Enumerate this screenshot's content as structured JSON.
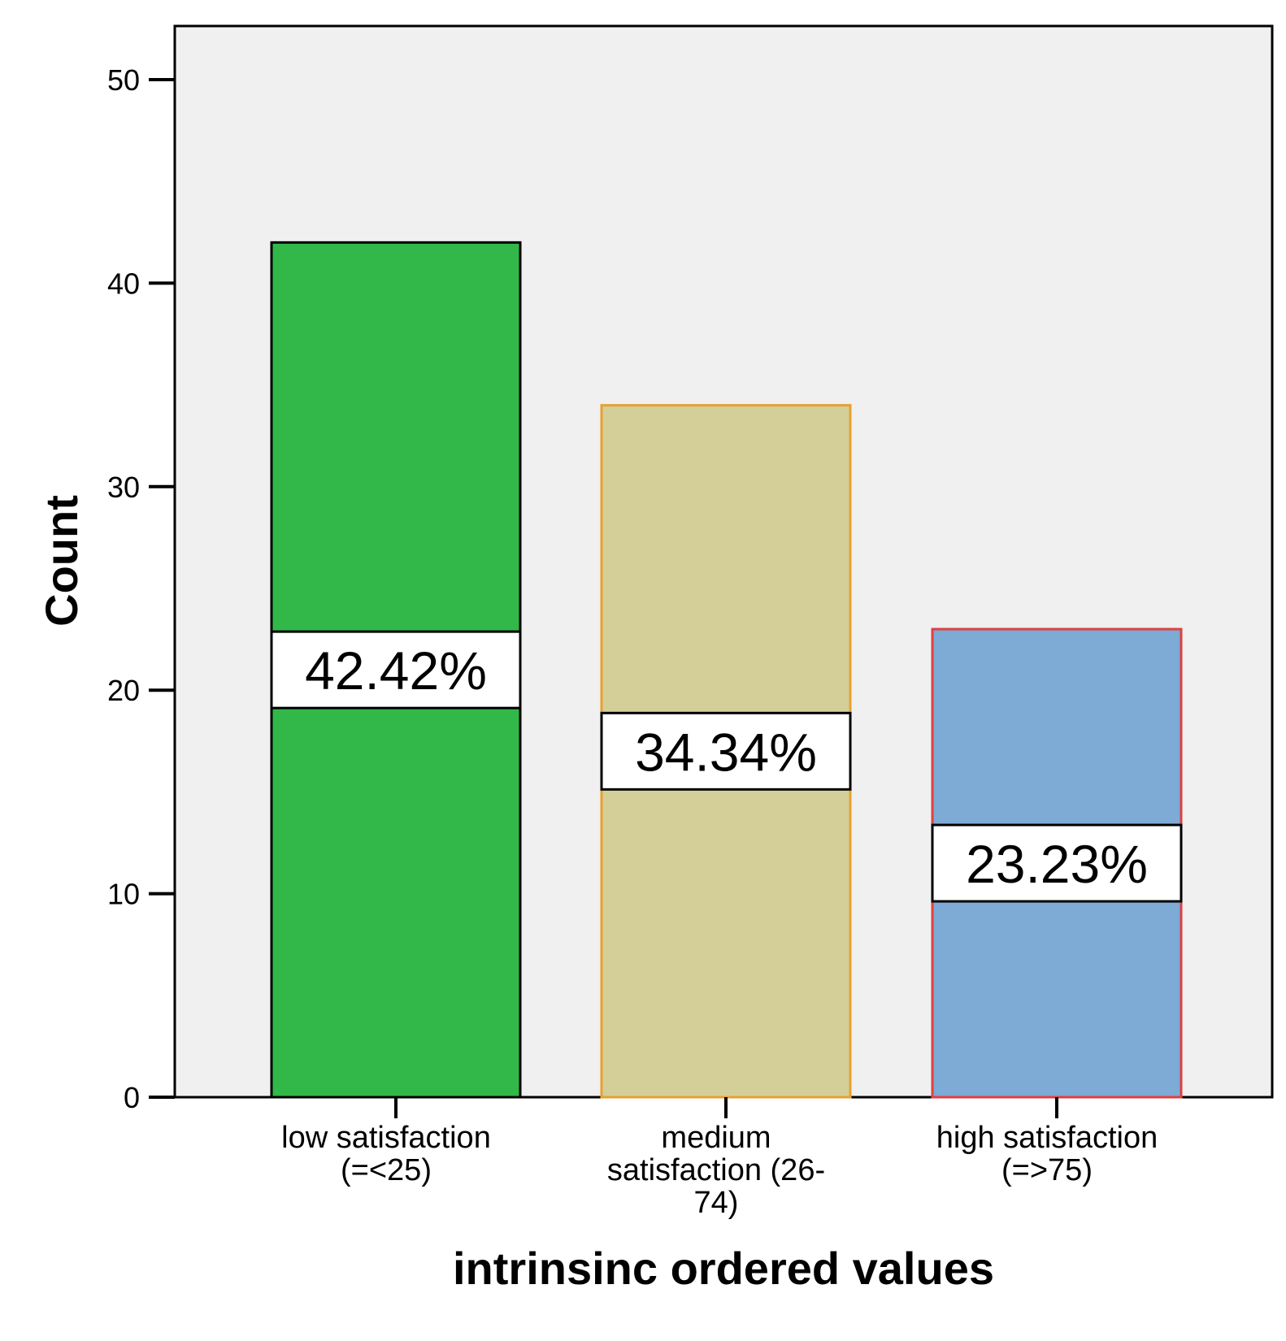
{
  "chart_data": {
    "type": "bar",
    "xlabel": "intrinsinc ordered values",
    "ylabel": "Count",
    "ylim": [
      0,
      53
    ],
    "yticks": [
      0,
      10,
      20,
      30,
      40,
      50
    ],
    "grid": false,
    "categories": [
      [
        "low satisfaction",
        "(=<25)"
      ],
      [
        "medium",
        "satisfaction (26-",
        "74)"
      ],
      [
        "high satisfaction",
        "(=>75)"
      ]
    ],
    "values": [
      42,
      34,
      23
    ],
    "data_labels": [
      "42.42%",
      "34.34%",
      "23.23%"
    ],
    "colors": {
      "plot_background": "#f0f0f0",
      "bar_fills": [
        "#31b848",
        "#d4cf98",
        "#7eaad6"
      ],
      "bar_outlines": [
        "#000000",
        "#e8a030",
        "#e04040"
      ]
    }
  }
}
